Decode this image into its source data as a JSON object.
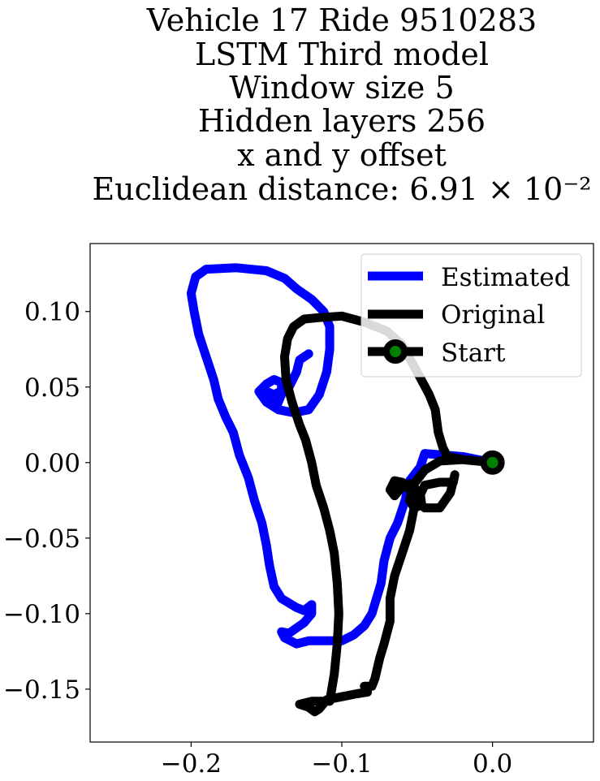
{
  "chart_data": {
    "type": "line",
    "title_lines": [
      "Vehicle 17 Ride 9510283",
      "LSTM Third model",
      "Window size 5",
      "Hidden layers 256",
      "x and y offset",
      "Euclidean distance: 6.91 × 10⁻²"
    ],
    "xlabel": "",
    "ylabel": "",
    "xlim": [
      -0.267,
      0.067
    ],
    "ylim": [
      -0.185,
      0.145
    ],
    "xticks": [
      -0.2,
      -0.1,
      0.0
    ],
    "xtick_labels": [
      "−0.2",
      "−0.1",
      "0.0"
    ],
    "yticks": [
      0.1,
      0.05,
      0.0,
      -0.05,
      -0.1,
      -0.15
    ],
    "ytick_labels": [
      "0.10",
      "0.05",
      "0.00",
      "−0.05",
      "−0.10",
      "−0.15"
    ],
    "grid": false,
    "legend_position": "top-right",
    "series": [
      {
        "name": "Estimated",
        "color": "#0000ff",
        "points": [
          [
            0.0,
            0.0
          ],
          [
            -0.02,
            0.004
          ],
          [
            -0.045,
            0.006
          ],
          [
            -0.048,
            -0.003
          ],
          [
            -0.055,
            -0.012
          ],
          [
            -0.058,
            -0.025
          ],
          [
            -0.063,
            -0.04
          ],
          [
            -0.068,
            -0.05
          ],
          [
            -0.072,
            -0.065
          ],
          [
            -0.074,
            -0.08
          ],
          [
            -0.077,
            -0.09
          ],
          [
            -0.08,
            -0.1
          ],
          [
            -0.085,
            -0.108
          ],
          [
            -0.092,
            -0.114
          ],
          [
            -0.1,
            -0.118
          ],
          [
            -0.11,
            -0.118
          ],
          [
            -0.122,
            -0.118
          ],
          [
            -0.13,
            -0.12
          ],
          [
            -0.138,
            -0.116
          ],
          [
            -0.14,
            -0.112
          ],
          [
            -0.135,
            -0.113
          ],
          [
            -0.125,
            -0.106
          ],
          [
            -0.12,
            -0.1
          ],
          [
            -0.12,
            -0.094
          ],
          [
            -0.125,
            -0.098
          ],
          [
            -0.13,
            -0.096
          ],
          [
            -0.14,
            -0.09
          ],
          [
            -0.145,
            -0.082
          ],
          [
            -0.148,
            -0.068
          ],
          [
            -0.15,
            -0.055
          ],
          [
            -0.153,
            -0.04
          ],
          [
            -0.158,
            -0.025
          ],
          [
            -0.162,
            -0.01
          ],
          [
            -0.168,
            0.005
          ],
          [
            -0.172,
            0.02
          ],
          [
            -0.177,
            0.03
          ],
          [
            -0.182,
            0.042
          ],
          [
            -0.185,
            0.055
          ],
          [
            -0.19,
            0.07
          ],
          [
            -0.195,
            0.085
          ],
          [
            -0.198,
            0.1
          ],
          [
            -0.2,
            0.112
          ],
          [
            -0.197,
            0.123
          ],
          [
            -0.19,
            0.128
          ],
          [
            -0.17,
            0.129
          ],
          [
            -0.15,
            0.127
          ],
          [
            -0.138,
            0.122
          ],
          [
            -0.13,
            0.115
          ],
          [
            -0.12,
            0.108
          ],
          [
            -0.112,
            0.1
          ],
          [
            -0.108,
            0.09
          ],
          [
            -0.108,
            0.075
          ],
          [
            -0.11,
            0.06
          ],
          [
            -0.115,
            0.045
          ],
          [
            -0.122,
            0.035
          ],
          [
            -0.132,
            0.033
          ],
          [
            -0.142,
            0.035
          ],
          [
            -0.15,
            0.04
          ],
          [
            -0.155,
            0.047
          ],
          [
            -0.15,
            0.052
          ],
          [
            -0.145,
            0.055
          ],
          [
            -0.14,
            0.053
          ],
          [
            -0.14,
            0.045
          ],
          [
            -0.143,
            0.038
          ],
          [
            -0.148,
            0.043
          ],
          [
            -0.152,
            0.048
          ],
          [
            -0.145,
            0.045
          ],
          [
            -0.135,
            0.05
          ],
          [
            -0.13,
            0.06
          ],
          [
            -0.128,
            0.068
          ],
          [
            -0.122,
            0.072
          ]
        ]
      },
      {
        "name": "Original",
        "color": "#000000",
        "points": [
          [
            0.0,
            0.0
          ],
          [
            -0.01,
            0.001
          ],
          [
            -0.02,
            0.002
          ],
          [
            -0.035,
            0.001
          ],
          [
            -0.045,
            -0.005
          ],
          [
            -0.052,
            -0.014
          ],
          [
            -0.055,
            -0.025
          ],
          [
            -0.052,
            -0.03
          ],
          [
            -0.047,
            -0.028
          ],
          [
            -0.048,
            -0.02
          ],
          [
            -0.055,
            -0.014
          ],
          [
            -0.06,
            -0.016
          ],
          [
            -0.065,
            -0.022
          ],
          [
            -0.068,
            -0.018
          ],
          [
            -0.065,
            -0.012
          ],
          [
            -0.06,
            -0.013
          ],
          [
            -0.055,
            -0.018
          ],
          [
            -0.052,
            -0.024
          ],
          [
            -0.045,
            -0.03
          ],
          [
            -0.035,
            -0.03
          ],
          [
            -0.028,
            -0.02
          ],
          [
            -0.025,
            -0.008
          ],
          [
            -0.026,
            -0.013
          ],
          [
            -0.035,
            -0.013
          ],
          [
            -0.045,
            -0.015
          ],
          [
            -0.052,
            -0.03
          ],
          [
            -0.055,
            -0.045
          ],
          [
            -0.06,
            -0.06
          ],
          [
            -0.065,
            -0.075
          ],
          [
            -0.068,
            -0.09
          ],
          [
            -0.068,
            -0.105
          ],
          [
            -0.072,
            -0.12
          ],
          [
            -0.075,
            -0.13
          ],
          [
            -0.078,
            -0.143
          ],
          [
            -0.08,
            -0.148
          ],
          [
            -0.085,
            -0.148
          ],
          [
            -0.083,
            -0.152
          ],
          [
            -0.09,
            -0.153
          ],
          [
            -0.1,
            -0.155
          ],
          [
            -0.11,
            -0.157
          ],
          [
            -0.115,
            -0.163
          ],
          [
            -0.118,
            -0.165
          ],
          [
            -0.122,
            -0.162
          ],
          [
            -0.128,
            -0.16
          ],
          [
            -0.12,
            -0.158
          ],
          [
            -0.108,
            -0.158
          ],
          [
            -0.105,
            -0.14
          ],
          [
            -0.103,
            -0.12
          ],
          [
            -0.102,
            -0.1
          ],
          [
            -0.103,
            -0.08
          ],
          [
            -0.105,
            -0.06
          ],
          [
            -0.108,
            -0.045
          ],
          [
            -0.112,
            -0.03
          ],
          [
            -0.117,
            -0.015
          ],
          [
            -0.12,
            0.0
          ],
          [
            -0.124,
            0.015
          ],
          [
            -0.128,
            0.025
          ],
          [
            -0.133,
            0.04
          ],
          [
            -0.137,
            0.055
          ],
          [
            -0.138,
            0.07
          ],
          [
            -0.136,
            0.082
          ],
          [
            -0.132,
            0.09
          ],
          [
            -0.125,
            0.095
          ],
          [
            -0.115,
            0.096
          ],
          [
            -0.1,
            0.097
          ],
          [
            -0.085,
            0.093
          ],
          [
            -0.07,
            0.087
          ],
          [
            -0.06,
            0.078
          ],
          [
            -0.05,
            0.06
          ],
          [
            -0.042,
            0.045
          ],
          [
            -0.038,
            0.035
          ],
          [
            -0.036,
            0.02
          ],
          [
            -0.033,
            0.01
          ],
          [
            -0.03,
            0.004
          ],
          [
            -0.02,
            0.002
          ],
          [
            0.0,
            0.0
          ]
        ]
      }
    ],
    "start_marker": {
      "name": "Start",
      "x": 0.0,
      "y": 0.0,
      "edge_color": "#000000",
      "face_color": "#008000"
    }
  }
}
